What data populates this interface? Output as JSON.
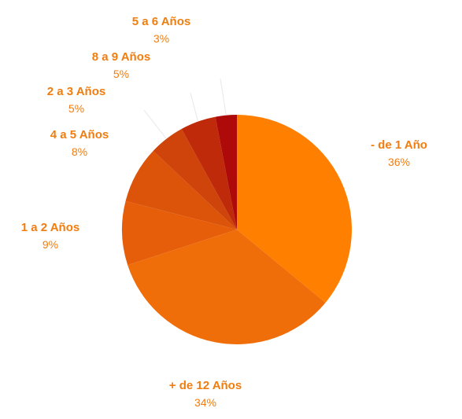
{
  "chart_data": {
    "type": "pie",
    "title": "",
    "slices": [
      {
        "label": "- de 1 Año",
        "value": 36,
        "display": "36%",
        "color": "#FF7F00"
      },
      {
        "label": "+ de 12 Años",
        "value": 34,
        "display": "34%",
        "color": "#F06E0A"
      },
      {
        "label": "1 a 2 Años",
        "value": 9,
        "display": "9%",
        "color": "#E65E0A"
      },
      {
        "label": "4 a 5 Años",
        "value": 8,
        "display": "8%",
        "color": "#DC530A"
      },
      {
        "label": "2 a 3 Años",
        "value": 5,
        "display": "5%",
        "color": "#CE440A"
      },
      {
        "label": "8 a 9 Años",
        "value": 5,
        "display": "5%",
        "color": "#BF2A0A"
      },
      {
        "label": "5 a 6 Años",
        "value": 3,
        "display": "3%",
        "color": "#AE0A0A"
      }
    ],
    "label_color": "#F07D10",
    "leader_line_color": "#E8E8E8"
  }
}
